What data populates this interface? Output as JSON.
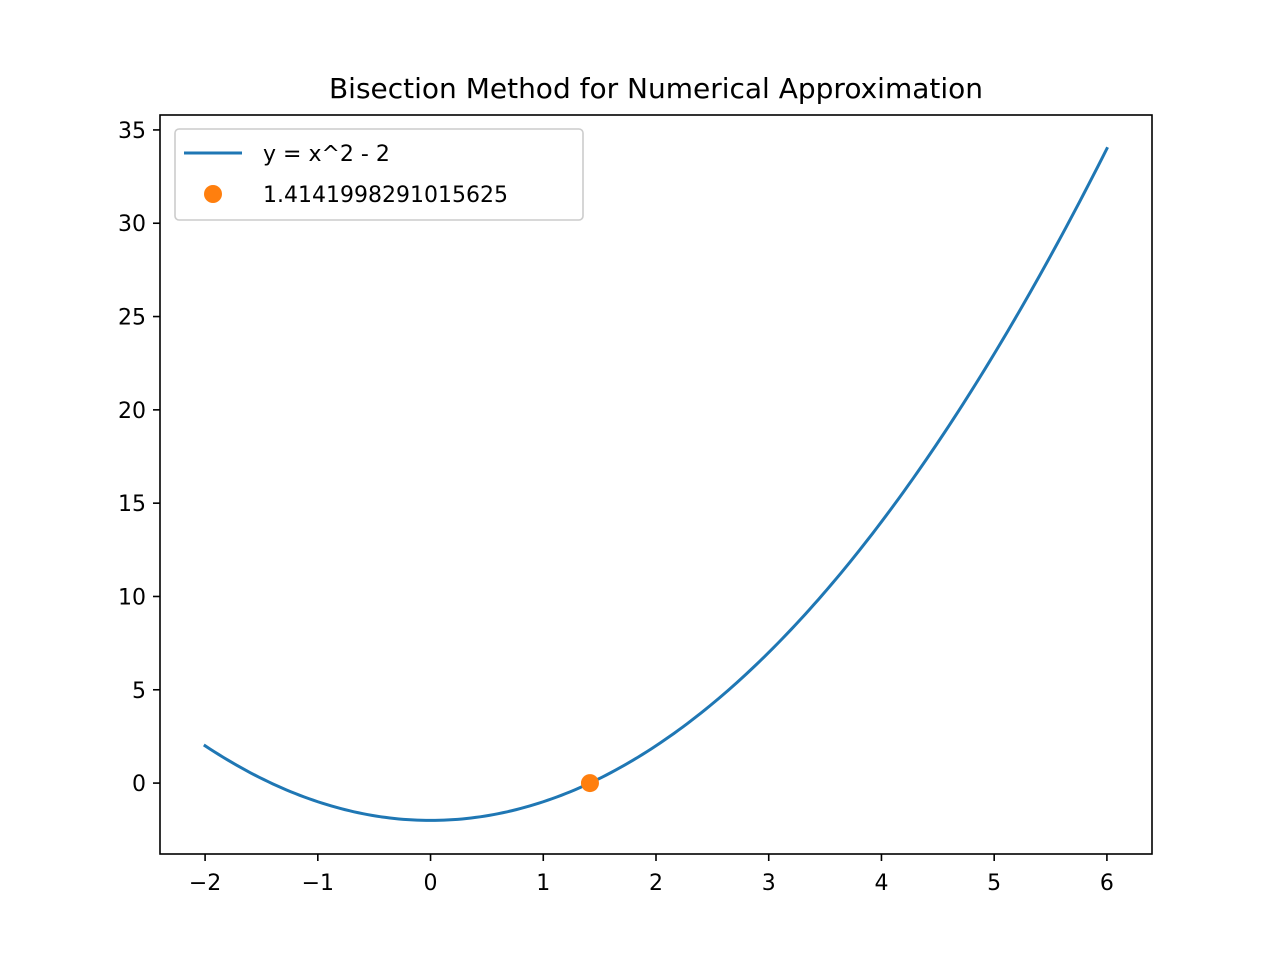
{
  "chart_data": {
    "type": "line",
    "title": "Bisection Method for Numerical Approximation",
    "xlabel": "",
    "ylabel": "",
    "xlim": [
      -2.4,
      6.4
    ],
    "ylim": [
      -3.8,
      35.8
    ],
    "grid": false,
    "legend_position": "upper-left",
    "x_ticks": [
      -2,
      -1,
      0,
      1,
      2,
      3,
      4,
      5,
      6
    ],
    "x_tick_labels": [
      "−2",
      "−1",
      "0",
      "1",
      "2",
      "3",
      "4",
      "5",
      "6"
    ],
    "y_ticks": [
      0,
      5,
      10,
      15,
      20,
      25,
      30,
      35
    ],
    "y_tick_labels": [
      "0",
      "5",
      "10",
      "15",
      "20",
      "25",
      "30",
      "35"
    ],
    "series": [
      {
        "name": "y = x^2 - 2",
        "kind": "line",
        "color": "#1f77b4",
        "function": "x^2 - 2",
        "x_range": [
          -2,
          6
        ]
      },
      {
        "name": "1.4141998291015625",
        "kind": "point",
        "color": "#ff7f0e",
        "points": [
          [
            1.4141998291015625,
            0
          ]
        ]
      }
    ]
  }
}
